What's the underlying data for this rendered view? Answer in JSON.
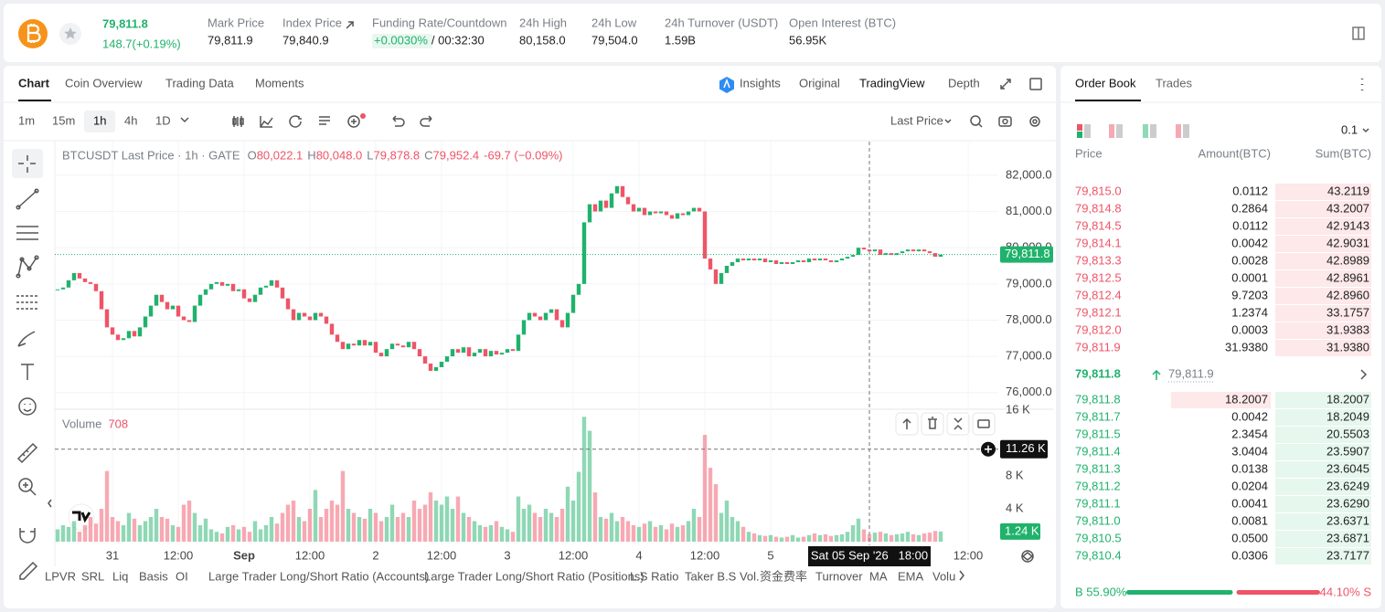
{
  "header": {
    "price": "79,811.8",
    "change": "148.7(+0.19%)",
    "stats": [
      {
        "label": "Mark Price",
        "value": "79,811.9"
      },
      {
        "label": "Index Price",
        "value": "79,840.9"
      },
      {
        "label": "Funding Rate/Countdown",
        "value": "+0.0030%",
        "countdown": "/ 00:32:30"
      },
      {
        "label": "24h High",
        "value": "80,158.0"
      },
      {
        "label": "24h Low",
        "value": "79,504.0"
      },
      {
        "label": "24h Turnover (USDT)",
        "value": "1.59B"
      },
      {
        "label": "Open Interest (BTC)",
        "value": "56.95K"
      }
    ]
  },
  "chart_tabs": [
    "Chart",
    "Coin Overview",
    "Trading Data",
    "Moments"
  ],
  "view_tabs": [
    "Insights",
    "Original",
    "TradingView",
    "Depth"
  ],
  "intervals": [
    "1m",
    "15m",
    "1h",
    "4h",
    "1D"
  ],
  "price_type": "Last Price",
  "chart_data": {
    "type": "candlestick",
    "legend": "BTCUSDT Last Price · 1h · GATE",
    "ohlc": [
      {
        "key": "O",
        "value": "80,022.1"
      },
      {
        "key": "H",
        "value": "80,048.0"
      },
      {
        "key": "L",
        "value": "79,878.8"
      },
      {
        "key": "C",
        "value": "79,952.4"
      }
    ],
    "ohlc_change": "-69.7 (−0.09%)",
    "up_color": "#20b26c",
    "down_color": "#ef5467",
    "values": [
      78850,
      78900,
      79100,
      79300,
      79150,
      79050,
      79000,
      78800,
      78300,
      77800,
      77600,
      77450,
      77500,
      77700,
      77550,
      77800,
      78100,
      78400,
      78700,
      78500,
      78300,
      78400,
      78100,
      78000,
      77950,
      78400,
      78700,
      78850,
      79000,
      79050,
      78950,
      79000,
      78800,
      78850,
      78600,
      78500,
      78700,
      78900,
      78950,
      79100,
      78900,
      78600,
      78300,
      78000,
      78200,
      78100,
      78000,
      78200,
      78100,
      77900,
      77600,
      77400,
      77200,
      77350,
      77300,
      77450,
      77300,
      77400,
      77100,
      77000,
      77200,
      77350,
      77300,
      77250,
      77400,
      77200,
      77000,
      76800,
      76600,
      76700,
      76850,
      77000,
      77200,
      77100,
      77250,
      77000,
      77100,
      77200,
      77000,
      77150,
      77050,
      77100,
      77200,
      77150,
      77600,
      78000,
      78200,
      78100,
      78000,
      78200,
      78300,
      78000,
      77800,
      78200,
      78700,
      79000,
      80700,
      81200,
      81000,
      81300,
      81100,
      81500,
      81700,
      81400,
      81200,
      81000,
      81100,
      80900,
      81000,
      80950,
      81000,
      80900,
      80800,
      80950,
      80900,
      81000,
      81100,
      81000,
      79700,
      79400,
      79000,
      79300,
      79500,
      79600,
      79700,
      79650,
      79700,
      79650,
      79700,
      79600,
      79650,
      79550,
      79600,
      79550,
      79600,
      79650,
      79600,
      79700,
      79650,
      79700,
      79650,
      79600,
      79650,
      79700,
      79750,
      79800,
      80000,
      79950,
      79900,
      79950,
      79800,
      79850,
      79800,
      79850,
      79900,
      79950,
      79900,
      79950,
      79900,
      79850,
      79750,
      79811.8
    ],
    "volumes": [
      1.5,
      2,
      1.8,
      2.5,
      1.2,
      2,
      3,
      2.2,
      4,
      8.6,
      3,
      2.5,
      2,
      3.5,
      2.8,
      2,
      2.5,
      3,
      4,
      3,
      2.8,
      2,
      1.8,
      4.5,
      5,
      3.5,
      2,
      2.8,
      1.5,
      1.2,
      1,
      1.8,
      2,
      1.5,
      1.8,
      1.2,
      2.5,
      1.5,
      2,
      3,
      2.2,
      3.5,
      4.5,
      5,
      3,
      2.5,
      4,
      6.3,
      3,
      4,
      5,
      4.5,
      8.6,
      4,
      3.5,
      3,
      2.8,
      4,
      3.5,
      2.5,
      3,
      4.5,
      3,
      3.5,
      3,
      5,
      4,
      4.5,
      6,
      5,
      4.5,
      5.5,
      4,
      5.5,
      3.5,
      3,
      2.5,
      2,
      1.8,
      2,
      2.5,
      1.8,
      1.5,
      1.2,
      5.5,
      4,
      4.5,
      3.5,
      3,
      4,
      3.5,
      3,
      4,
      6.7,
      5,
      8.5,
      15.2,
      13.5,
      6,
      3,
      2.8,
      3.5,
      2.5,
      3,
      2.5,
      2,
      1.8,
      2.2,
      2.5,
      1.8,
      2,
      1.5,
      2.2,
      1.8,
      2,
      2.5,
      4,
      3,
      13,
      9,
      7,
      3.5,
      5,
      3,
      2.5,
      1.8,
      1.2,
      1,
      0.8,
      0.7,
      0.8,
      0.6,
      0.5,
      0.6,
      0.8,
      0.5,
      0.6,
      0.8,
      1,
      0.8,
      0.9,
      0.7,
      0.8,
      0.9,
      1.2,
      2,
      2.8,
      1.5,
      0.9,
      1.1,
      1.2,
      1,
      0.8,
      0.9,
      1,
      1.2,
      0.9,
      0.8,
      1,
      1.1,
      1.3,
      1.24
    ],
    "xlim": [
      -0.5,
      171.5
    ],
    "xticks": [
      {
        "value": 10,
        "label": "31"
      },
      {
        "value": 22,
        "label": "12:00"
      },
      {
        "value": 34,
        "label": "Sep",
        "major": true
      },
      {
        "value": 46,
        "label": "12:00"
      },
      {
        "value": 58,
        "label": "2"
      },
      {
        "value": 70,
        "label": "12:00"
      },
      {
        "value": 82,
        "label": "3"
      },
      {
        "value": 94,
        "label": "12:00"
      },
      {
        "value": 106,
        "label": "4"
      },
      {
        "value": 118,
        "label": "12:00"
      },
      {
        "value": 130,
        "label": "5"
      },
      {
        "value": 166,
        "label": "12:00"
      }
    ],
    "ylim": [
      75540,
      82930
    ],
    "yticks": [
      {
        "value": 82000,
        "label": "82,000.0"
      },
      {
        "value": 81000,
        "label": "81,000.0"
      },
      {
        "value": 80000,
        "label": "80,000.0"
      },
      {
        "value": 79000,
        "label": "79,000.0"
      },
      {
        "value": 78000,
        "label": "78,000.0"
      },
      {
        "value": 77000,
        "label": "77,000.0"
      },
      {
        "value": 76000,
        "label": "76,000.0"
      }
    ],
    "price_marker": {
      "value": 79811.8,
      "label": "79,811.8"
    },
    "volume_title": "Volume",
    "volume_value": "708",
    "y2lim": [
      0,
      15.9
    ],
    "y2ticks": [
      {
        "value": 16,
        "label": "16 K"
      },
      {
        "value": 8,
        "label": "8 K"
      },
      {
        "value": 4,
        "label": "4 K"
      }
    ],
    "volume_marker": {
      "value": 1.24,
      "label": "1.24 K"
    },
    "cursor_volume": {
      "value": 11.26,
      "label": "11.26 K"
    },
    "cursor_time": {
      "value": 148,
      "label": "Sat 05 Sep '26   18:00"
    }
  },
  "indicators": [
    "LPVR",
    "SRL",
    "Liq",
    "Basis",
    "OI",
    "Large Trader Long/Short Ratio (Accounts)",
    "Large Trader Long/Short Ratio (Positions)",
    "L.S Ratio",
    "Taker B.S Vol.",
    "资金费率",
    "Turnover",
    "MA",
    "EMA",
    "Volu"
  ],
  "order_book": {
    "tabs": [
      "Order Book",
      "Trades"
    ],
    "precision": "0.1",
    "columns": [
      "Price",
      "Amount(BTC)",
      "Sum(BTC)"
    ],
    "asks": [
      [
        "79,815.0",
        "0.0112",
        "43.2119"
      ],
      [
        "79,814.8",
        "0.2864",
        "43.2007"
      ],
      [
        "79,814.5",
        "0.0112",
        "42.9143"
      ],
      [
        "79,814.1",
        "0.0042",
        "42.9031"
      ],
      [
        "79,813.3",
        "0.0028",
        "42.8989"
      ],
      [
        "79,812.5",
        "0.0001",
        "42.8961"
      ],
      [
        "79,812.4",
        "9.7203",
        "42.8960"
      ],
      [
        "79,812.1",
        "1.2374",
        "33.1757"
      ],
      [
        "79,812.0",
        "0.0003",
        "31.9383"
      ],
      [
        "79,811.9",
        "31.9380",
        "31.9380"
      ]
    ],
    "last_price": "79,811.8",
    "mark_price": "79,811.9",
    "bids": [
      [
        "79,811.8",
        "18.2007",
        "18.2007"
      ],
      [
        "79,811.7",
        "0.0042",
        "18.2049"
      ],
      [
        "79,811.5",
        "2.3454",
        "20.5503"
      ],
      [
        "79,811.4",
        "3.0404",
        "23.5907"
      ],
      [
        "79,811.3",
        "0.0138",
        "23.6045"
      ],
      [
        "79,811.2",
        "0.0204",
        "23.6249"
      ],
      [
        "79,811.1",
        "0.0041",
        "23.6290"
      ],
      [
        "79,811.0",
        "0.0081",
        "23.6371"
      ],
      [
        "79,810.5",
        "0.0500",
        "23.6871"
      ],
      [
        "79,810.4",
        "0.0306",
        "23.7177"
      ]
    ],
    "buy_ratio": {
      "value": 55.9,
      "label": "B 55.90%"
    },
    "sell_ratio": {
      "value": 44.1,
      "label": "44.10% S"
    }
  }
}
